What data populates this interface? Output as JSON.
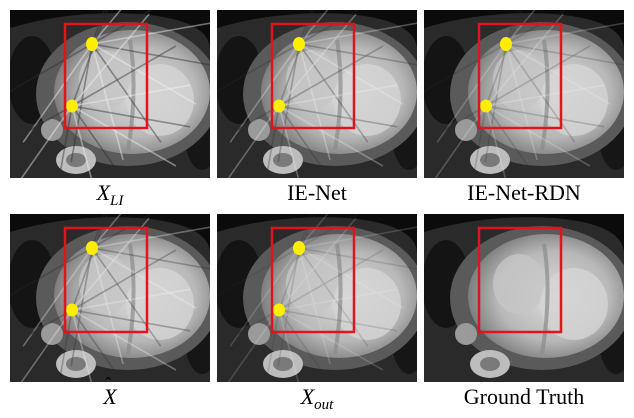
{
  "figure": {
    "box_color": "#e0141c",
    "marker_color": "#ffee00",
    "panels": [
      {
        "id": "xli",
        "caption_base": "X",
        "caption_sub": "LI",
        "caption_style": "math",
        "has_markers": true,
        "artifact_level": 0.8
      },
      {
        "id": "ienet",
        "caption": "IE-Net",
        "caption_style": "text",
        "has_markers": true,
        "artifact_level": 0.55
      },
      {
        "id": "ienet-rdn",
        "caption": "IE-Net-RDN",
        "caption_style": "text",
        "has_markers": true,
        "artifact_level": 0.4
      },
      {
        "id": "xhat",
        "caption_base": "X",
        "caption_hat": "ˆ",
        "caption_style": "math",
        "has_markers": true,
        "artifact_level": 0.6
      },
      {
        "id": "xout",
        "caption_base": "X",
        "caption_sub": "out",
        "caption_style": "math",
        "has_markers": true,
        "artifact_level": 0.3
      },
      {
        "id": "ground-truth",
        "caption": "Ground Truth",
        "caption_style": "text",
        "has_markers": false,
        "artifact_level": 0.0
      }
    ]
  }
}
